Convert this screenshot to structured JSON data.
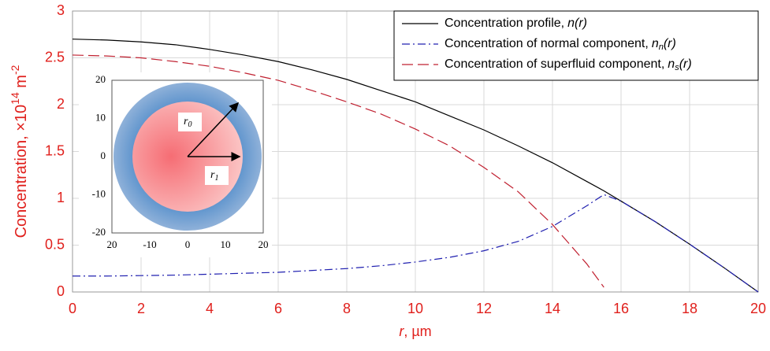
{
  "chart_data": {
    "type": "line",
    "ylabel": {
      "text": "Concentration, ×10",
      "exp": "14",
      "unit": " m",
      "unit_exp": "-2"
    },
    "xlabel": {
      "var": "r",
      "unit": ", µm"
    },
    "x": [
      0,
      1,
      2,
      3,
      4,
      5,
      6,
      7,
      8,
      9,
      10,
      11,
      12,
      13,
      14,
      15,
      15.5,
      16,
      17,
      18,
      19,
      20
    ],
    "xlim": [
      0,
      20
    ],
    "xticks": [
      0,
      2,
      4,
      6,
      8,
      10,
      12,
      14,
      16,
      18,
      20
    ],
    "ylim": [
      0,
      3
    ],
    "yticks": [
      0,
      0.5,
      1,
      1.5,
      2,
      2.5,
      3
    ],
    "grid": true,
    "legend": "upper right",
    "series": [
      {
        "name": "Concentration profile,",
        "symbol": {
          "base": "n",
          "sub": null,
          "arg": "(r)"
        },
        "color": "#000000",
        "dash": "solid",
        "values": [
          2.7,
          2.69,
          2.67,
          2.64,
          2.59,
          2.53,
          2.46,
          2.37,
          2.27,
          2.15,
          2.03,
          1.88,
          1.73,
          1.56,
          1.38,
          1.18,
          1.08,
          0.97,
          0.75,
          0.51,
          0.26,
          0
        ]
      },
      {
        "name": "Concentration of normal component,",
        "symbol": {
          "base": "n",
          "sub": "n",
          "arg": "(r)"
        },
        "color": "#2020b0",
        "dash": "dashdot",
        "values": [
          0.17,
          0.17,
          0.175,
          0.18,
          0.19,
          0.2,
          0.21,
          0.23,
          0.25,
          0.28,
          0.32,
          0.37,
          0.44,
          0.54,
          0.7,
          0.92,
          1.04,
          0.97,
          0.75,
          0.51,
          0.26,
          0
        ]
      },
      {
        "name": "Concentration of superfluid component,",
        "symbol": {
          "base": "n",
          "sub": "s",
          "arg": "(r)"
        },
        "color": "#c02030",
        "dash": "dashed",
        "values": [
          2.53,
          2.52,
          2.5,
          2.46,
          2.41,
          2.34,
          2.26,
          2.15,
          2.03,
          1.9,
          1.74,
          1.56,
          1.33,
          1.07,
          0.72,
          0.3,
          0.05,
          null,
          null,
          null,
          null,
          null
        ]
      }
    ],
    "inset": {
      "xlim": [
        -20,
        20
      ],
      "ylim": [
        -20,
        20
      ],
      "xticks": [
        {
          "value": -20,
          "label": "20"
        },
        -10,
        0,
        10,
        20
      ],
      "yticks": [
        20,
        10,
        0,
        -10,
        -20
      ],
      "labels": [
        {
          "base": "r",
          "sub": "0"
        },
        {
          "base": "r",
          "sub": "1"
        }
      ]
    }
  }
}
